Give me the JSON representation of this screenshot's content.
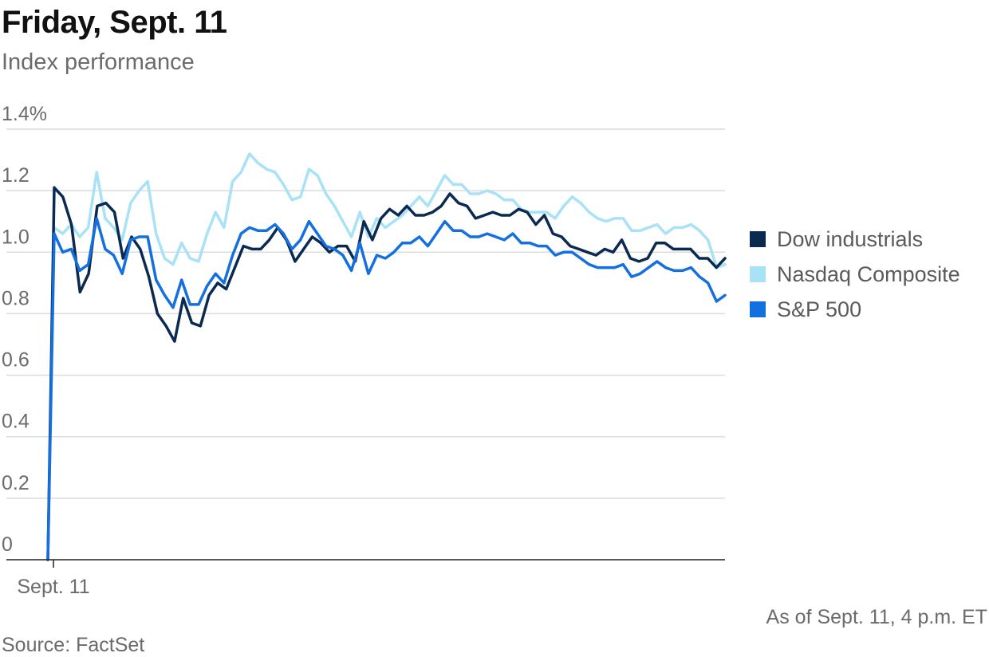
{
  "title": "Friday, Sept. 11",
  "subtitle": "Index performance",
  "note": "As of Sept. 11, 4 p.m. ET",
  "source": "Source: FactSet",
  "chart_data": {
    "type": "line",
    "xlabel": "",
    "ylabel": "",
    "ylim": [
      0,
      1.4
    ],
    "y_ticks": [
      "0",
      "0.2",
      "0.4",
      "0.6",
      "0.8",
      "1.0",
      "1.2",
      "1.4%"
    ],
    "x_ticks": [
      "Sept. 11"
    ],
    "grid": true,
    "legend_position": "right",
    "series": [
      {
        "name": "Nasdaq Composite",
        "color": "#a8e2f7",
        "values": [
          0,
          1.08,
          1.06,
          1.09,
          1.05,
          1.08,
          1.26,
          1.11,
          1.08,
          1.04,
          1.16,
          1.2,
          1.23,
          1.06,
          0.98,
          0.96,
          1.03,
          0.98,
          0.97,
          1.06,
          1.13,
          1.08,
          1.23,
          1.26,
          1.32,
          1.29,
          1.27,
          1.26,
          1.22,
          1.17,
          1.18,
          1.27,
          1.25,
          1.19,
          1.15,
          1.1,
          1.05,
          1.13,
          1.05,
          1.11,
          1.08,
          1.1,
          1.12,
          1.15,
          1.18,
          1.15,
          1.2,
          1.25,
          1.22,
          1.22,
          1.19,
          1.19,
          1.2,
          1.19,
          1.17,
          1.17,
          1.14,
          1.13,
          1.13,
          1.13,
          1.11,
          1.15,
          1.18,
          1.16,
          1.13,
          1.11,
          1.1,
          1.11,
          1.11,
          1.07,
          1.07,
          1.08,
          1.09,
          1.06,
          1.08,
          1.08,
          1.09,
          1.07,
          1.04,
          0.95,
          0.96
        ]
      },
      {
        "name": "Dow industrials",
        "color": "#0b2a52",
        "values": [
          0,
          1.21,
          1.18,
          1.09,
          0.87,
          0.93,
          1.15,
          1.16,
          1.13,
          0.98,
          1.05,
          1.01,
          0.92,
          0.8,
          0.76,
          0.71,
          0.85,
          0.77,
          0.76,
          0.86,
          0.9,
          0.88,
          0.95,
          1.02,
          1.01,
          1.01,
          1.04,
          1.08,
          1.04,
          0.97,
          1.01,
          1.05,
          1.03,
          1.0,
          1.02,
          1.02,
          0.97,
          1.1,
          1.04,
          1.11,
          1.14,
          1.12,
          1.15,
          1.12,
          1.12,
          1.13,
          1.15,
          1.19,
          1.16,
          1.15,
          1.11,
          1.12,
          1.13,
          1.12,
          1.12,
          1.14,
          1.13,
          1.09,
          1.12,
          1.06,
          1.05,
          1.02,
          1.01,
          1.0,
          0.99,
          1.01,
          1.0,
          1.04,
          0.98,
          0.97,
          0.98,
          1.03,
          1.03,
          1.01,
          1.01,
          1.01,
          0.98,
          0.98,
          0.95,
          0.98
        ]
      },
      {
        "name": "S&P 500",
        "color": "#1470de",
        "values": [
          0,
          1.06,
          1.0,
          1.01,
          0.94,
          0.96,
          1.11,
          1.01,
          0.99,
          0.93,
          1.04,
          1.05,
          1.05,
          0.91,
          0.86,
          0.82,
          0.91,
          0.83,
          0.83,
          0.89,
          0.93,
          0.9,
          0.99,
          1.06,
          1.08,
          1.07,
          1.07,
          1.09,
          1.06,
          1.01,
          1.04,
          1.1,
          1.06,
          1.02,
          1.01,
          0.99,
          0.94,
          1.03,
          0.93,
          0.99,
          0.98,
          1.0,
          1.03,
          1.03,
          1.05,
          1.02,
          1.06,
          1.1,
          1.07,
          1.07,
          1.05,
          1.05,
          1.06,
          1.05,
          1.04,
          1.06,
          1.03,
          1.03,
          1.02,
          1.02,
          0.99,
          1.0,
          1.0,
          0.98,
          0.96,
          0.95,
          0.95,
          0.95,
          0.96,
          0.92,
          0.93,
          0.95,
          0.97,
          0.95,
          0.94,
          0.94,
          0.95,
          0.92,
          0.9,
          0.84,
          0.86
        ]
      }
    ]
  }
}
